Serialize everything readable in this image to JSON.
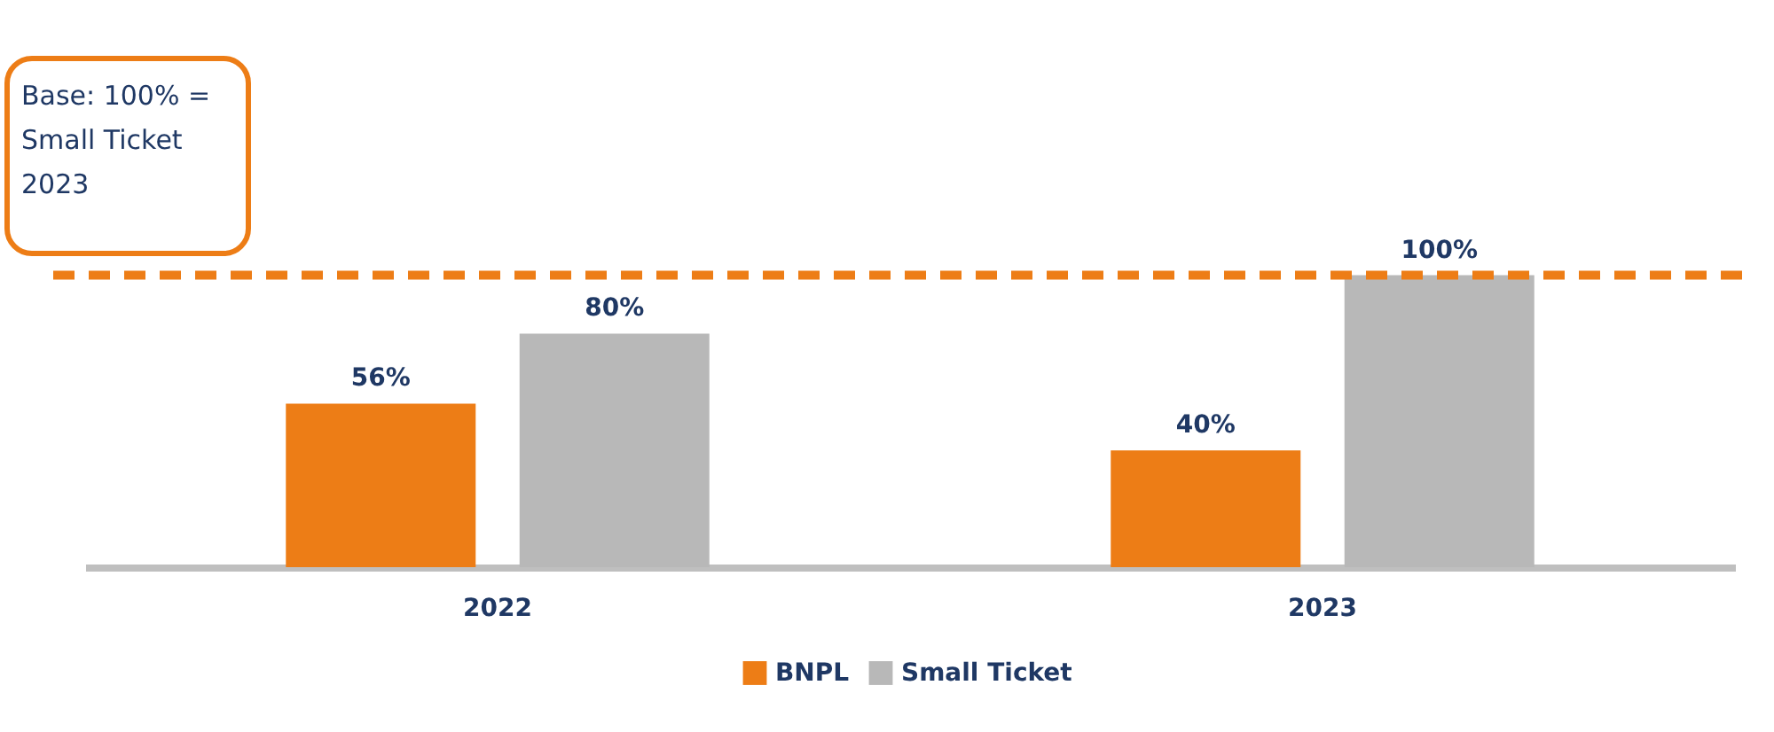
{
  "chart_data": {
    "type": "bar",
    "categories": [
      "2022",
      "2023"
    ],
    "series": [
      {
        "name": "BNPL",
        "color": "#ed7d16",
        "values": [
          56,
          40
        ],
        "value_labels": [
          "56%",
          "40%"
        ]
      },
      {
        "name": "Small Ticket",
        "color": "#b8b8b8",
        "values": [
          80,
          100
        ],
        "value_labels": [
          "80%",
          "100%"
        ]
      }
    ],
    "ref_lines": [
      {
        "axis": "y",
        "value": 100,
        "label": "Base: 100% = Small Ticket 2023",
        "color": "#ed7d16",
        "line_style": "dashed"
      }
    ],
    "legend": "bottom",
    "grid": false
  }
}
